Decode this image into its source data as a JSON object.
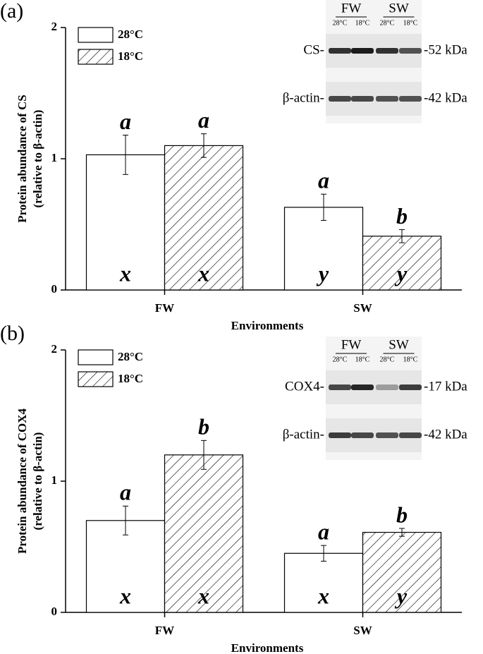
{
  "chart_data": [
    {
      "type": "bar",
      "panel": "(a)",
      "ylabel": [
        "Protein abundance of CS",
        "(relative to β-actin)"
      ],
      "xlabel": "Environments",
      "categories": [
        "FW",
        "SW"
      ],
      "series": [
        {
          "name": "28°C",
          "color": "#ffffff",
          "hatch": false,
          "values": [
            1.03,
            0.63
          ],
          "errors": [
            0.15,
            0.1
          ],
          "letters": [
            "a",
            "a"
          ],
          "group_letters": [
            "x",
            "y"
          ]
        },
        {
          "name": "18°C",
          "color": "#ffffff",
          "hatch": true,
          "values": [
            1.1,
            0.41
          ],
          "errors": [
            0.09,
            0.05
          ],
          "letters": [
            "a",
            "b"
          ],
          "group_letters": [
            "x",
            "y"
          ]
        }
      ],
      "ylim": [
        0,
        2
      ],
      "yticks": [
        0,
        1,
        2
      ],
      "legend": "upper left",
      "blot": {
        "groups": [
          "FW",
          "SW"
        ],
        "lanes": [
          "28°C",
          "18°C",
          "28°C",
          "18°C"
        ],
        "rows": [
          {
            "label": "CS-",
            "size": "-52 kDa"
          },
          {
            "label": "β-actin-",
            "size": "-42 kDa"
          }
        ]
      }
    },
    {
      "type": "bar",
      "panel": "(b)",
      "ylabel": [
        "Protein abundance of COX4",
        "(relative to β-actin)"
      ],
      "xlabel": "Environments",
      "categories": [
        "FW",
        "SW"
      ],
      "series": [
        {
          "name": "28°C",
          "color": "#ffffff",
          "hatch": false,
          "values": [
            0.7,
            0.45
          ],
          "errors": [
            0.11,
            0.06
          ],
          "letters": [
            "a",
            "a"
          ],
          "group_letters": [
            "x",
            "x"
          ]
        },
        {
          "name": "18°C",
          "color": "#ffffff",
          "hatch": true,
          "values": [
            1.2,
            0.61
          ],
          "errors": [
            0.11,
            0.03
          ],
          "letters": [
            "b",
            "b"
          ],
          "group_letters": [
            "x",
            "y"
          ]
        }
      ],
      "ylim": [
        0,
        2
      ],
      "yticks": [
        0,
        1,
        2
      ],
      "legend": "upper left",
      "blot": {
        "groups": [
          "FW",
          "SW"
        ],
        "lanes": [
          "28°C",
          "18°C",
          "28°C",
          "18°C"
        ],
        "rows": [
          {
            "label": "COX4-",
            "size": "-17 kDa"
          },
          {
            "label": "β-actin-",
            "size": "-42 kDa"
          }
        ]
      }
    }
  ]
}
